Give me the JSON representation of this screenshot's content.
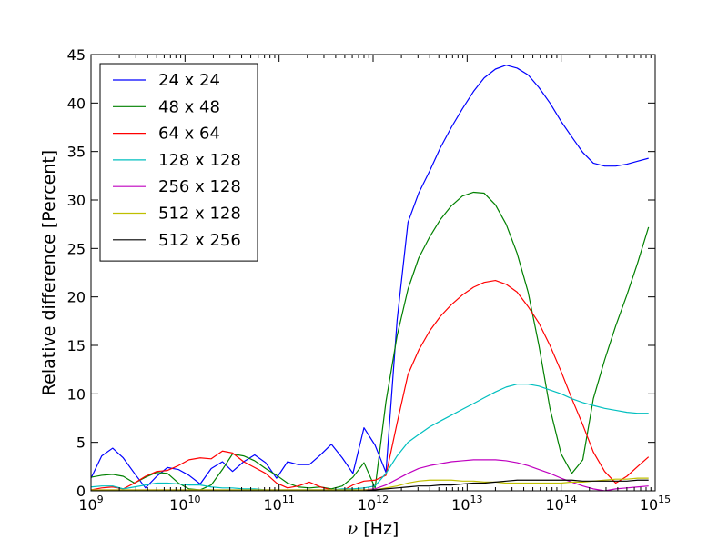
{
  "chart_data": {
    "type": "line",
    "title": "",
    "xlabel_symbol": "ν",
    "xlabel_unit": "[Hz]",
    "ylabel": "Relative difference [Percent]",
    "xscale": "log",
    "xlim": [
      1000000000.0,
      1000000000000000.0
    ],
    "ylim": [
      0,
      45
    ],
    "grid": false,
    "legend_position": "upper-left",
    "x_ticks": [
      {
        "value": 1000000000.0,
        "base": "10",
        "exp": "9"
      },
      {
        "value": 10000000000.0,
        "base": "10",
        "exp": "10"
      },
      {
        "value": 100000000000.0,
        "base": "10",
        "exp": "11"
      },
      {
        "value": 1000000000000.0,
        "base": "10",
        "exp": "12"
      },
      {
        "value": 10000000000000.0,
        "base": "10",
        "exp": "13"
      },
      {
        "value": 100000000000000.0,
        "base": "10",
        "exp": "14"
      },
      {
        "value": 1000000000000000.0,
        "base": "10",
        "exp": "15"
      }
    ],
    "y_ticks": [
      0,
      5,
      10,
      15,
      20,
      25,
      30,
      35,
      40,
      45
    ],
    "x": [
      1000000000.0,
      1300000000.0,
      1700000000.0,
      2200000000.0,
      2900000000.0,
      3800000000.0,
      5000000000.0,
      6500000000.0,
      8500000000.0,
      11000000000.0,
      14500000000.0,
      19000000000.0,
      25000000000.0,
      32000000000.0,
      42000000000.0,
      55000000000.0,
      72000000000.0,
      94000000000.0,
      123000000000.0,
      160000000000.0,
      210000000000.0,
      275000000000.0,
      360000000000.0,
      470000000000.0,
      610000000000.0,
      800000000000.0,
      1050000000000.0,
      1370000000000.0,
      1800000000000.0,
      2350000000000.0,
      3050000000000.0,
      4000000000000.0,
      5200000000000.0,
      6800000000000.0,
      8900000000000.0,
      11700000000000.0,
      15200000000000.0,
      20000000000000.0,
      26000000000000.0,
      34000000000000.0,
      44500000000000.0,
      58000000000000.0,
      76000000000000.0,
      100000000000000.0,
      130000000000000.0,
      170000000000000.0,
      220000000000000.0,
      290000000000000.0,
      380000000000000.0,
      500000000000000.0,
      650000000000000.0,
      850000000000000.0
    ],
    "series": [
      {
        "name": "24 x 24",
        "color": "#0000ff",
        "values": [
          1.3,
          3.6,
          4.4,
          3.4,
          1.8,
          0.3,
          1.5,
          2.4,
          2.2,
          1.6,
          0.7,
          2.3,
          3.0,
          2.0,
          3.0,
          3.7,
          2.9,
          1.3,
          3.0,
          2.7,
          2.7,
          3.7,
          4.8,
          3.4,
          1.8,
          6.5,
          4.7,
          1.9,
          17.6,
          27.7,
          30.7,
          33.0,
          35.4,
          37.5,
          39.4,
          41.2,
          42.6,
          43.5,
          43.9,
          43.6,
          42.9,
          41.6,
          40.0,
          38.1,
          36.5,
          34.9,
          33.8,
          33.5,
          33.5,
          33.7,
          34.0,
          34.3
        ]
      },
      {
        "name": "48 x 48",
        "color": "#008000",
        "values": [
          1.4,
          1.6,
          1.7,
          1.5,
          0.8,
          1.4,
          1.9,
          1.8,
          0.8,
          0.2,
          0.1,
          0.6,
          2.2,
          3.8,
          3.6,
          3.1,
          2.3,
          1.6,
          0.8,
          0.4,
          0.3,
          0.4,
          0.2,
          0.5,
          1.4,
          2.9,
          0.3,
          9.2,
          16.0,
          20.8,
          24.0,
          26.2,
          28.0,
          29.4,
          30.4,
          30.8,
          30.7,
          29.5,
          27.5,
          24.5,
          20.5,
          15.0,
          8.5,
          3.8,
          1.8,
          3.2,
          9.5,
          13.5,
          17.0,
          20.2,
          23.5,
          27.2
        ]
      },
      {
        "name": "64 x 64",
        "color": "#ff0000",
        "values": [
          0.1,
          0.3,
          0.4,
          0.2,
          0.8,
          1.5,
          2.0,
          2.1,
          2.6,
          3.2,
          3.4,
          3.3,
          4.1,
          3.9,
          3.0,
          2.4,
          1.8,
          0.8,
          0.3,
          0.5,
          0.9,
          0.4,
          0.1,
          0.0,
          0.6,
          1.0,
          1.1,
          1.6,
          7.0,
          12.0,
          14.5,
          16.5,
          18.0,
          19.2,
          20.2,
          21.0,
          21.5,
          21.7,
          21.3,
          20.5,
          19.0,
          17.3,
          15.0,
          12.3,
          9.5,
          6.8,
          4.0,
          2.0,
          0.8,
          1.5,
          2.5,
          3.5
        ]
      },
      {
        "name": "128 x 128",
        "color": "#00bfbf",
        "values": [
          0.4,
          0.5,
          0.5,
          0.2,
          0.4,
          0.6,
          0.8,
          0.8,
          0.7,
          0.6,
          0.6,
          0.4,
          0.3,
          0.3,
          0.2,
          0.2,
          0.1,
          0.1,
          0.1,
          0.1,
          0.1,
          0.1,
          0.1,
          0.2,
          0.2,
          0.3,
          0.5,
          1.8,
          3.6,
          5.0,
          5.8,
          6.6,
          7.2,
          7.8,
          8.4,
          9.0,
          9.6,
          10.2,
          10.7,
          11.0,
          11.0,
          10.8,
          10.4,
          10.0,
          9.5,
          9.1,
          8.8,
          8.5,
          8.3,
          8.1,
          8.0,
          8.0
        ]
      },
      {
        "name": "256 x 128",
        "color": "#bf00bf",
        "values": [
          0.1,
          0.1,
          0.1,
          0.1,
          0.1,
          0.1,
          0.1,
          0.1,
          0.1,
          0.1,
          0.1,
          0.1,
          0.1,
          0.1,
          0.1,
          0.1,
          0.1,
          0.1,
          0.1,
          0.1,
          0.1,
          0.1,
          0.1,
          0.1,
          0.1,
          0.1,
          0.2,
          0.6,
          1.2,
          1.8,
          2.3,
          2.6,
          2.8,
          3.0,
          3.1,
          3.2,
          3.2,
          3.2,
          3.1,
          2.9,
          2.6,
          2.2,
          1.8,
          1.3,
          0.9,
          0.5,
          0.2,
          0.0,
          0.2,
          0.3,
          0.4,
          0.5
        ]
      },
      {
        "name": "512 x 128",
        "color": "#bfbf00",
        "values": [
          0.1,
          0.1,
          0.1,
          0.1,
          0.1,
          0.1,
          0.1,
          0.1,
          0.1,
          0.1,
          0.1,
          0.1,
          0.1,
          0.1,
          0.1,
          0.1,
          0.1,
          0.1,
          0.1,
          0.1,
          0.1,
          0.1,
          0.1,
          0.1,
          0.1,
          0.1,
          0.1,
          0.3,
          0.5,
          0.8,
          1.0,
          1.1,
          1.1,
          1.1,
          1.0,
          1.0,
          0.9,
          0.9,
          0.8,
          0.8,
          0.8,
          0.8,
          0.8,
          0.8,
          0.9,
          0.9,
          1.0,
          1.1,
          1.2,
          1.2,
          1.3,
          1.3
        ]
      },
      {
        "name": "512 x 256",
        "color": "#000000",
        "values": [
          0.0,
          0.0,
          0.0,
          0.0,
          0.0,
          0.0,
          0.0,
          0.0,
          0.0,
          0.0,
          0.0,
          0.0,
          0.0,
          0.0,
          0.0,
          0.0,
          0.0,
          0.0,
          0.0,
          0.0,
          0.0,
          0.0,
          0.0,
          0.0,
          0.0,
          0.0,
          0.1,
          0.2,
          0.3,
          0.4,
          0.5,
          0.5,
          0.6,
          0.6,
          0.7,
          0.8,
          0.8,
          0.9,
          1.0,
          1.1,
          1.1,
          1.1,
          1.1,
          1.1,
          1.1,
          1.0,
          1.0,
          1.0,
          1.0,
          1.0,
          1.1,
          1.1
        ]
      }
    ]
  }
}
